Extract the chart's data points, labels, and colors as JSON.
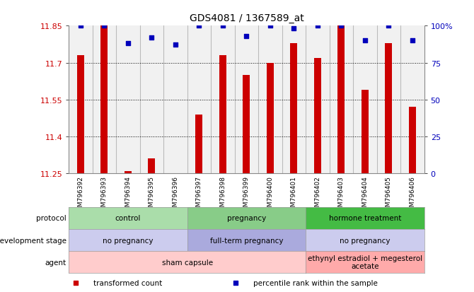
{
  "title": "GDS4081 / 1367589_at",
  "samples": [
    "GSM796392",
    "GSM796393",
    "GSM796394",
    "GSM796395",
    "GSM796396",
    "GSM796397",
    "GSM796398",
    "GSM796399",
    "GSM796400",
    "GSM796401",
    "GSM796402",
    "GSM796403",
    "GSM796404",
    "GSM796405",
    "GSM796406"
  ],
  "bar_values": [
    11.73,
    11.85,
    11.26,
    11.31,
    11.25,
    11.49,
    11.73,
    11.65,
    11.7,
    11.78,
    11.72,
    11.85,
    11.59,
    11.78,
    11.52
  ],
  "percentile_values": [
    100,
    100,
    88,
    92,
    87,
    100,
    100,
    93,
    100,
    98,
    100,
    100,
    90,
    100,
    90
  ],
  "ylim": [
    11.25,
    11.85
  ],
  "yticks": [
    11.25,
    11.4,
    11.55,
    11.7,
    11.85
  ],
  "right_yticks": [
    0,
    25,
    50,
    75,
    100
  ],
  "right_ytick_labels": [
    "0",
    "25",
    "50",
    "75",
    "100%"
  ],
  "bar_color": "#cc0000",
  "dot_color": "#0000bb",
  "protocol_groups": [
    {
      "label": "control",
      "start": 0,
      "end": 4,
      "color": "#aaddaa"
    },
    {
      "label": "pregnancy",
      "start": 5,
      "end": 9,
      "color": "#88cc88"
    },
    {
      "label": "hormone treatment",
      "start": 10,
      "end": 14,
      "color": "#44bb44"
    }
  ],
  "dev_stage_groups": [
    {
      "label": "no pregnancy",
      "start": 0,
      "end": 4,
      "color": "#ccccee"
    },
    {
      "label": "full-term pregnancy",
      "start": 5,
      "end": 9,
      "color": "#aaaadd"
    },
    {
      "label": "no pregnancy",
      "start": 10,
      "end": 14,
      "color": "#ccccee"
    }
  ],
  "agent_groups": [
    {
      "label": "sham capsule",
      "start": 0,
      "end": 9,
      "color": "#ffcccc"
    },
    {
      "label": "ethynyl estradiol + megesterol\nacetate",
      "start": 10,
      "end": 14,
      "color": "#ffaaaa"
    }
  ],
  "row_labels": [
    "protocol",
    "development stage",
    "agent"
  ],
  "legend_items": [
    {
      "color": "#cc0000",
      "label": "transformed count",
      "marker": "s"
    },
    {
      "color": "#0000bb",
      "label": "percentile rank within the sample",
      "marker": "s"
    }
  ],
  "grid_color": "#000000",
  "tick_label_color_left": "#cc0000",
  "tick_label_color_right": "#0000bb",
  "col_bg_color": "#dddddd",
  "col_sep_color": "#bbbbbb"
}
